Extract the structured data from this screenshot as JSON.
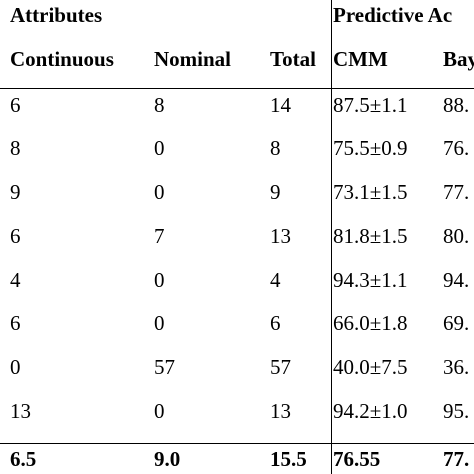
{
  "header": {
    "group_attributes": "Attributes",
    "group_predictive": "Predictive Ac",
    "col_continuous": "Continuous",
    "col_nominal": "Nominal",
    "col_total": "Total",
    "col_cmm": "CMM",
    "col_bay": "Bay"
  },
  "rows": [
    {
      "continuous": "6",
      "nominal": "8",
      "total": "14",
      "cmm": "87.5±1.1",
      "bay": "88."
    },
    {
      "continuous": "8",
      "nominal": "0",
      "total": "8",
      "cmm": "75.5±0.9",
      "bay": "76."
    },
    {
      "continuous": "9",
      "nominal": "0",
      "total": "9",
      "cmm": "73.1±1.5",
      "bay": "77."
    },
    {
      "continuous": "6",
      "nominal": "7",
      "total": "13",
      "cmm": "81.8±1.5",
      "bay": "80."
    },
    {
      "continuous": "4",
      "nominal": "0",
      "total": "4",
      "cmm": "94.3±1.1",
      "bay": "94."
    },
    {
      "continuous": "6",
      "nominal": "0",
      "total": "6",
      "cmm": "66.0±1.8",
      "bay": "69."
    },
    {
      "continuous": "0",
      "nominal": "57",
      "total": "57",
      "cmm": "40.0±7.5",
      "bay": "36."
    },
    {
      "continuous": "13",
      "nominal": "0",
      "total": "13",
      "cmm": "94.2±1.0",
      "bay": "95."
    }
  ],
  "summary": {
    "continuous": "6.5",
    "nominal": "9.0",
    "total": "15.5",
    "cmm": "76.55",
    "bay": "77."
  }
}
